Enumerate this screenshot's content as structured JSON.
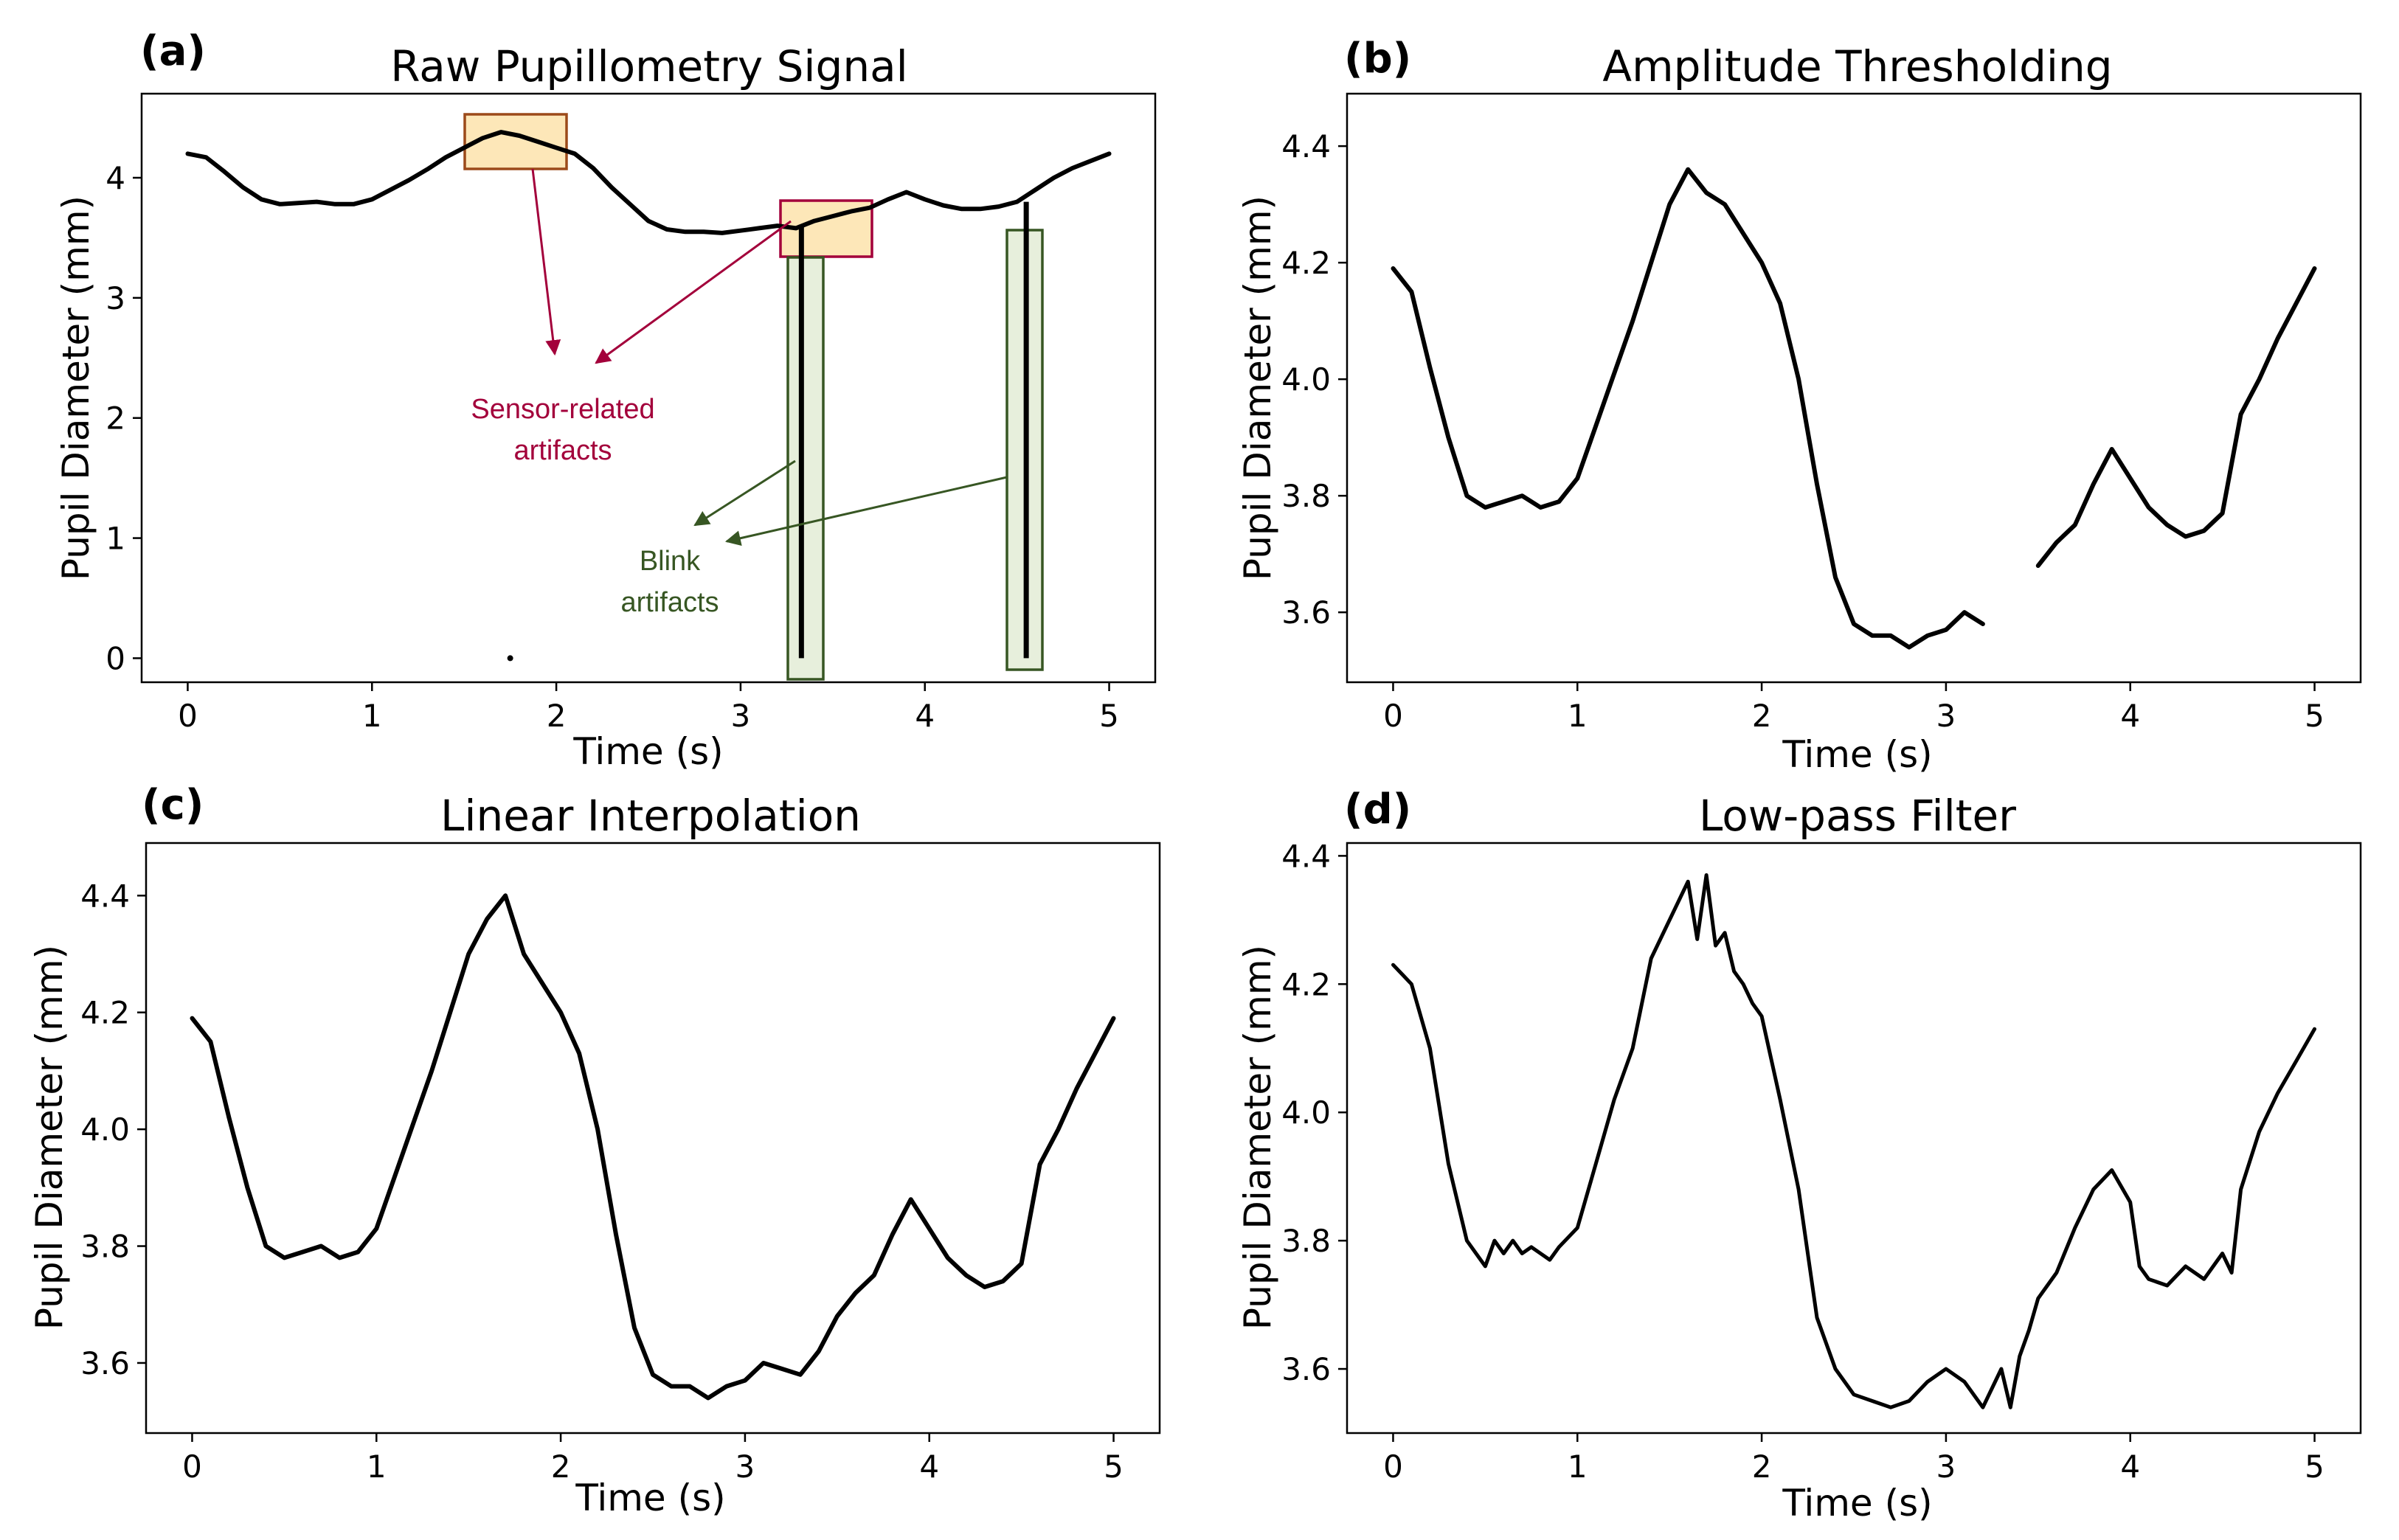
{
  "colors": {
    "line": "#000000",
    "sensor_artifact": "#a3003b",
    "blink_artifact": "#375623",
    "sensor_fill": "#fde7b8",
    "blink_fill": "#e7efdc",
    "sensor_box_stroke_a": "#9c4a1a"
  },
  "chart_data": [
    {
      "type": "line",
      "panel_label": "(a)",
      "title": "Raw Pupillometry Signal",
      "xlabel": "Time (s)",
      "ylabel": "Pupil Diameter (mm)",
      "xlim": [
        -0.25,
        5.25
      ],
      "ylim": [
        -0.2,
        4.7
      ],
      "xticks": [
        0,
        1,
        2,
        3,
        4,
        5
      ],
      "xtick_labels": [
        "0",
        "1",
        "2",
        "3",
        "4",
        "5"
      ],
      "yticks": [
        0,
        1,
        2,
        3,
        4
      ],
      "ytick_labels": [
        "0",
        "1",
        "2",
        "3",
        "4"
      ],
      "grid": false,
      "series": [
        {
          "name": "pupil diameter",
          "x": [
            0,
            0.1,
            0.2,
            0.3,
            0.4,
            0.5,
            0.6,
            0.7,
            0.8,
            0.9,
            1.0,
            1.1,
            1.2,
            1.3,
            1.4,
            1.5,
            1.6,
            1.7,
            1.8,
            1.9,
            2.0,
            2.1,
            2.2,
            2.3,
            2.4,
            2.5,
            2.6,
            2.7,
            2.8,
            2.9,
            3.0,
            3.1,
            3.2,
            3.3,
            3.4,
            3.5,
            3.6,
            3.7,
            3.8,
            3.9,
            4.0,
            4.1,
            4.2,
            4.3,
            4.4,
            4.5,
            4.6,
            4.7,
            4.8,
            4.9,
            5.0
          ],
          "y": [
            4.2,
            4.17,
            4.05,
            3.92,
            3.82,
            3.78,
            3.79,
            3.8,
            3.78,
            3.78,
            3.82,
            3.9,
            3.98,
            4.07,
            4.17,
            4.25,
            4.33,
            4.38,
            4.35,
            4.3,
            4.25,
            4.2,
            4.08,
            3.92,
            3.78,
            3.64,
            3.57,
            3.55,
            3.55,
            3.54,
            3.56,
            3.58,
            3.6,
            3.58,
            3.64,
            3.68,
            3.72,
            3.75,
            3.82,
            3.88,
            3.82,
            3.77,
            3.74,
            3.74,
            3.76,
            3.8,
            3.9,
            4.0,
            4.08,
            4.14,
            4.2
          ]
        }
      ],
      "extra_points": [
        {
          "x": 1.75,
          "y": 0
        }
      ],
      "blink_dropouts": [
        {
          "x": 3.33,
          "y_from": 3.6,
          "y_to": 0.0
        },
        {
          "x": 3.38,
          "y_from": 0.0,
          "y_to": 0.0
        },
        {
          "x": 4.55,
          "y_from": 3.8,
          "y_to": 0.0
        }
      ],
      "annotations": {
        "sensor_text": [
          "Sensor-related",
          "artifacts"
        ],
        "blink_text": [
          "Blink",
          "artifacts"
        ]
      }
    },
    {
      "type": "line",
      "panel_label": "(b)",
      "title": "Amplitude Thresholding",
      "xlabel": "Time (s)",
      "ylabel": "Pupil Diameter (mm)",
      "xlim": [
        -0.25,
        5.25
      ],
      "ylim": [
        3.48,
        4.49
      ],
      "xticks": [
        0,
        1,
        2,
        3,
        4,
        5
      ],
      "xtick_labels": [
        "0",
        "1",
        "2",
        "3",
        "4",
        "5"
      ],
      "yticks": [
        3.6,
        3.8,
        4.0,
        4.2,
        4.4
      ],
      "ytick_labels": [
        "3.6",
        "3.8",
        "4.0",
        "4.2",
        "4.4"
      ],
      "grid": false,
      "series": [
        {
          "name": "thresholded",
          "x": [
            0,
            0.1,
            0.2,
            0.3,
            0.4,
            0.5,
            0.6,
            0.7,
            0.8,
            0.9,
            1.0,
            1.1,
            1.2,
            1.3,
            1.4,
            1.5,
            1.6,
            1.7,
            1.8,
            1.9,
            2.0,
            2.1,
            2.2,
            2.3,
            2.4,
            2.5,
            2.6,
            2.7,
            2.8,
            2.9,
            3.0,
            3.1,
            3.2,
            3.3,
            3.4,
            3.5,
            3.6,
            3.7,
            3.8,
            3.9,
            4.0,
            4.1,
            4.2,
            4.3,
            4.4,
            4.5,
            4.6,
            4.7,
            4.8,
            4.9,
            5.0
          ],
          "y": [
            4.19,
            4.15,
            4.02,
            3.9,
            3.8,
            3.78,
            3.79,
            3.8,
            3.78,
            3.79,
            3.83,
            3.92,
            4.01,
            4.1,
            4.2,
            4.3,
            4.36,
            4.32,
            4.3,
            4.25,
            4.2,
            4.13,
            4.0,
            3.82,
            3.66,
            3.58,
            3.56,
            3.56,
            3.54,
            3.56,
            3.57,
            3.6,
            3.58,
            null,
            null,
            3.68,
            3.72,
            3.75,
            3.82,
            3.88,
            3.83,
            3.78,
            3.75,
            3.73,
            3.74,
            3.77,
            3.94,
            4.0,
            4.07,
            4.13,
            4.19
          ]
        }
      ]
    },
    {
      "type": "line",
      "panel_label": "(c)",
      "title": "Linear Interpolation",
      "xlabel": "Time (s)",
      "ylabel": "Pupil Diameter (mm)",
      "xlim": [
        -0.25,
        5.25
      ],
      "ylim": [
        3.48,
        4.49
      ],
      "xticks": [
        0,
        1,
        2,
        3,
        4,
        5
      ],
      "xtick_labels": [
        "0",
        "1",
        "2",
        "3",
        "4",
        "5"
      ],
      "yticks": [
        3.6,
        3.8,
        4.0,
        4.2,
        4.4
      ],
      "ytick_labels": [
        "3.6",
        "3.8",
        "4.0",
        "4.2",
        "4.4"
      ],
      "grid": false,
      "series": [
        {
          "name": "interpolated",
          "x": [
            0,
            0.1,
            0.2,
            0.3,
            0.4,
            0.5,
            0.6,
            0.7,
            0.8,
            0.9,
            1.0,
            1.1,
            1.2,
            1.3,
            1.4,
            1.5,
            1.6,
            1.7,
            1.8,
            1.9,
            2.0,
            2.1,
            2.2,
            2.3,
            2.4,
            2.5,
            2.6,
            2.7,
            2.8,
            2.9,
            3.0,
            3.1,
            3.2,
            3.3,
            3.4,
            3.5,
            3.6,
            3.7,
            3.8,
            3.9,
            4.0,
            4.1,
            4.2,
            4.3,
            4.4,
            4.5,
            4.6,
            4.7,
            4.8,
            4.9,
            5.0
          ],
          "y": [
            4.19,
            4.15,
            4.02,
            3.9,
            3.8,
            3.78,
            3.79,
            3.8,
            3.78,
            3.79,
            3.83,
            3.92,
            4.01,
            4.1,
            4.2,
            4.3,
            4.36,
            4.4,
            4.3,
            4.25,
            4.2,
            4.13,
            4.0,
            3.82,
            3.66,
            3.58,
            3.56,
            3.56,
            3.54,
            3.56,
            3.57,
            3.6,
            3.59,
            3.58,
            3.62,
            3.68,
            3.72,
            3.75,
            3.82,
            3.88,
            3.83,
            3.78,
            3.75,
            3.73,
            3.74,
            3.77,
            3.94,
            4.0,
            4.07,
            4.13,
            4.19
          ]
        }
      ]
    },
    {
      "type": "line",
      "panel_label": "(d)",
      "title": "Low-pass Filter",
      "xlabel": "Time (s)",
      "ylabel": "Pupil Diameter (mm)",
      "xlim": [
        -0.25,
        5.25
      ],
      "ylim": [
        3.5,
        4.42
      ],
      "xticks": [
        0,
        1,
        2,
        3,
        4,
        5
      ],
      "xtick_labels": [
        "0",
        "1",
        "2",
        "3",
        "4",
        "5"
      ],
      "yticks": [
        3.6,
        3.8,
        4.0,
        4.2,
        4.4
      ],
      "ytick_labels": [
        "3.6",
        "3.8",
        "4.0",
        "4.2",
        "4.4"
      ],
      "grid": false,
      "series": [
        {
          "name": "filtered",
          "x": [
            0,
            0.1,
            0.2,
            0.3,
            0.4,
            0.5,
            0.55,
            0.6,
            0.65,
            0.7,
            0.75,
            0.8,
            0.85,
            0.9,
            1.0,
            1.1,
            1.2,
            1.3,
            1.4,
            1.5,
            1.6,
            1.65,
            1.7,
            1.75,
            1.8,
            1.85,
            1.9,
            1.95,
            2.0,
            2.1,
            2.2,
            2.3,
            2.4,
            2.5,
            2.6,
            2.7,
            2.8,
            2.9,
            3.0,
            3.1,
            3.2,
            3.3,
            3.35,
            3.4,
            3.45,
            3.5,
            3.55,
            3.6,
            3.7,
            3.8,
            3.9,
            4.0,
            4.05,
            4.1,
            4.2,
            4.3,
            4.4,
            4.5,
            4.55,
            4.6,
            4.7,
            4.8,
            4.9,
            5.0
          ],
          "y": [
            4.23,
            4.2,
            4.1,
            3.92,
            3.8,
            3.76,
            3.8,
            3.78,
            3.8,
            3.78,
            3.79,
            3.78,
            3.77,
            3.79,
            3.82,
            3.92,
            4.02,
            4.1,
            4.24,
            4.3,
            4.36,
            4.27,
            4.37,
            4.26,
            4.28,
            4.22,
            4.2,
            4.17,
            4.15,
            4.02,
            3.88,
            3.68,
            3.6,
            3.56,
            3.55,
            3.54,
            3.55,
            3.58,
            3.6,
            3.58,
            3.54,
            3.6,
            3.54,
            3.62,
            3.66,
            3.71,
            3.73,
            3.75,
            3.82,
            3.88,
            3.91,
            3.86,
            3.76,
            3.74,
            3.73,
            3.76,
            3.74,
            3.78,
            3.75,
            3.88,
            3.97,
            4.03,
            4.08,
            4.13
          ]
        }
      ]
    }
  ]
}
